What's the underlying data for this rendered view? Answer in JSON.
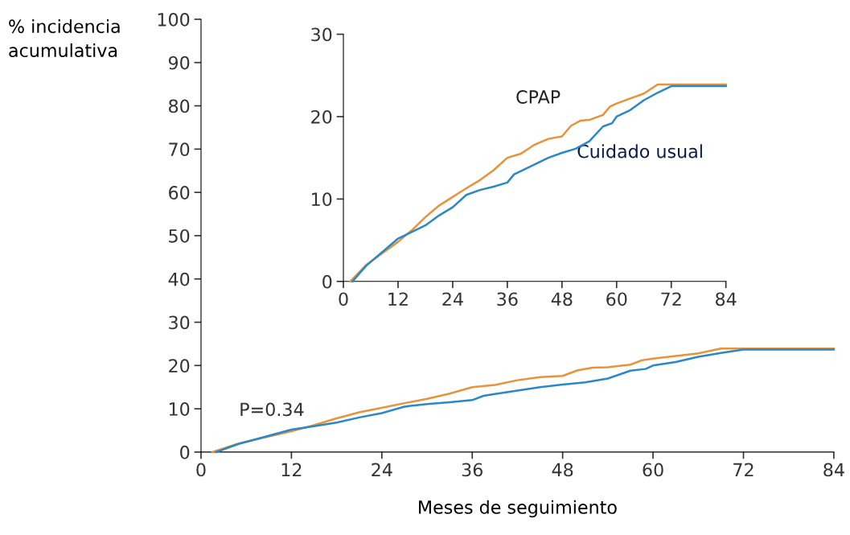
{
  "chart_data": [
    {
      "type": "line",
      "xlabel": "Meses de seguimiento",
      "ylabel": "% incidencia\nacumulativa",
      "annotations": [
        "P=0.34"
      ],
      "xlim": [
        0,
        84
      ],
      "xticks": [
        0,
        12,
        24,
        36,
        48,
        60,
        72,
        84
      ],
      "ylim": [
        0,
        100
      ],
      "yticks": [
        0,
        10,
        20,
        30,
        40,
        50,
        60,
        70,
        80,
        90,
        100
      ],
      "grid": false,
      "legend": false,
      "series": [
        {
          "color": "#e8923a",
          "x": [
            1.5,
            5,
            12,
            15,
            18,
            21,
            23,
            27,
            30,
            33,
            36,
            39,
            42,
            45,
            48,
            50,
            52,
            54,
            57,
            58.5,
            60,
            63,
            66,
            69,
            84
          ],
          "values": [
            0,
            2,
            4.8,
            6.2,
            7.8,
            9.2,
            9.9,
            11.3,
            12.3,
            13.5,
            15,
            15.5,
            16.6,
            17.3,
            17.6,
            18.9,
            19.5,
            19.6,
            20.2,
            21.2,
            21.6,
            22.2,
            22.8,
            23.9,
            23.9
          ]
        },
        {
          "color": "#2a88c8",
          "x": [
            2,
            5,
            12,
            15,
            18,
            21,
            24,
            27,
            30,
            33,
            36,
            37.5,
            39,
            42,
            45,
            48,
            51,
            54,
            57,
            59,
            60,
            63,
            66,
            69,
            72,
            84
          ],
          "values": [
            0,
            1.9,
            5.2,
            6,
            6.8,
            8,
            9,
            10.5,
            11.1,
            11.5,
            12,
            13,
            13.4,
            14.2,
            15,
            15.6,
            16.1,
            17,
            18.8,
            19.2,
            20,
            20.8,
            22,
            22.9,
            23.7,
            23.7
          ]
        }
      ]
    },
    {
      "type": "line",
      "xlim": [
        0,
        84
      ],
      "xticks": [
        0,
        12,
        24,
        36,
        48,
        60,
        72,
        84
      ],
      "ylim": [
        0,
        30
      ],
      "yticks": [
        0,
        10,
        20,
        30
      ],
      "grid": false,
      "legend": false,
      "series": [
        {
          "name": "CPAP",
          "color": "#e8923a",
          "x": [
            1.5,
            5,
            12,
            15,
            18,
            21,
            23,
            27,
            30,
            33,
            36,
            39,
            42,
            45,
            48,
            50,
            52,
            54,
            57,
            58.5,
            60,
            63,
            66,
            69,
            84
          ],
          "values": [
            0,
            2,
            4.8,
            6.2,
            7.8,
            9.2,
            9.9,
            11.3,
            12.3,
            13.5,
            15,
            15.5,
            16.6,
            17.3,
            17.6,
            18.9,
            19.5,
            19.6,
            20.2,
            21.2,
            21.6,
            22.2,
            22.8,
            23.9,
            23.9
          ]
        },
        {
          "name": "Cuidado usual",
          "color": "#2a88c8",
          "x": [
            2,
            5,
            12,
            15,
            18,
            21,
            24,
            27,
            30,
            33,
            36,
            37.5,
            39,
            42,
            45,
            48,
            51,
            54,
            57,
            59,
            60,
            63,
            66,
            69,
            72,
            84
          ],
          "values": [
            0,
            1.9,
            5.2,
            6,
            6.8,
            8,
            9,
            10.5,
            11.1,
            11.5,
            12,
            13,
            13.4,
            14.2,
            15,
            15.6,
            16.1,
            17,
            18.8,
            19.2,
            20,
            20.8,
            22,
            22.9,
            23.7,
            23.7
          ]
        }
      ]
    }
  ]
}
